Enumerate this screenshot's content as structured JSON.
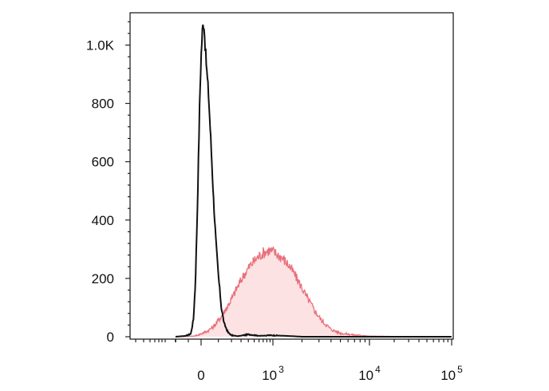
{
  "chart_data": {
    "type": "area",
    "title": "",
    "xlabel": "",
    "ylabel": "",
    "x_scale": "biexponential",
    "ylim": [
      0,
      1100
    ],
    "y_ticks": [
      {
        "value": 0,
        "label": "0"
      },
      {
        "value": 200,
        "label": "200"
      },
      {
        "value": 400,
        "label": "400"
      },
      {
        "value": 600,
        "label": "600"
      },
      {
        "value": 800,
        "label": "800"
      },
      {
        "value": 1000,
        "label": "1.0K"
      }
    ],
    "x_ticks": [
      {
        "value": "0",
        "base": "0",
        "exp": ""
      },
      {
        "value": "10^3",
        "base": "10",
        "exp": "3"
      },
      {
        "value": "10^4",
        "base": "10",
        "exp": "4"
      },
      {
        "value": "10^5",
        "base": "10",
        "exp": "5"
      }
    ],
    "grid": false,
    "legend": "none",
    "series": [
      {
        "style": "line",
        "color": "#111111",
        "points": [
          [
            -200,
            0
          ],
          [
            -120,
            3
          ],
          [
            -80,
            10
          ],
          [
            -60,
            60
          ],
          [
            -45,
            180
          ],
          [
            -30,
            420
          ],
          [
            -20,
            620
          ],
          [
            -10,
            820
          ],
          [
            0,
            960
          ],
          [
            8,
            1060
          ],
          [
            15,
            1080
          ],
          [
            22,
            1000
          ],
          [
            30,
            920
          ],
          [
            40,
            840
          ],
          [
            55,
            660
          ],
          [
            70,
            470
          ],
          [
            85,
            320
          ],
          [
            100,
            210
          ],
          [
            120,
            100
          ],
          [
            140,
            45
          ],
          [
            170,
            15
          ],
          [
            200,
            5
          ],
          [
            260,
            2
          ],
          [
            400,
            8
          ],
          [
            600,
            3
          ],
          [
            900,
            5
          ],
          [
            2000,
            0
          ],
          [
            100000,
            0
          ]
        ]
      },
      {
        "style": "filled",
        "color": "#e8707a",
        "fill": "#fde2e4",
        "points": [
          [
            -200,
            0
          ],
          [
            -60,
            2
          ],
          [
            -10,
            8
          ],
          [
            30,
            18
          ],
          [
            70,
            35
          ],
          [
            120,
            70
          ],
          [
            180,
            115
          ],
          [
            250,
            165
          ],
          [
            330,
            210
          ],
          [
            430,
            245
          ],
          [
            550,
            270
          ],
          [
            700,
            288
          ],
          [
            850,
            296
          ],
          [
            1000,
            292
          ],
          [
            1250,
            270
          ],
          [
            1500,
            240
          ],
          [
            1800,
            195
          ],
          [
            2200,
            140
          ],
          [
            2700,
            90
          ],
          [
            3200,
            55
          ],
          [
            4000,
            25
          ],
          [
            5000,
            12
          ],
          [
            7000,
            6
          ],
          [
            10000,
            2
          ],
          [
            30000,
            0
          ],
          [
            100000,
            0
          ]
        ]
      }
    ]
  }
}
